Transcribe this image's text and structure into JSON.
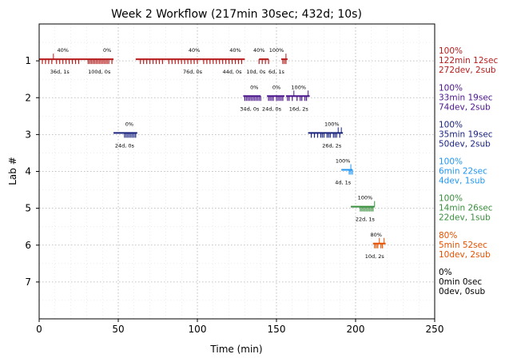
{
  "chart_data": {
    "type": "timeline",
    "title": "Week 2 Workflow (217min 30sec; 432d; 10s)",
    "xlabel": "Time (min)",
    "ylabel": "Lab #",
    "xlim": [
      0,
      250
    ],
    "ylim": [
      8,
      0
    ],
    "x_ticks": [
      "0",
      "50",
      "100",
      "150",
      "200",
      "250"
    ],
    "y_ticks": [
      "1",
      "2",
      "3",
      "4",
      "5",
      "6",
      "7"
    ],
    "grid": true,
    "labs": [
      {
        "lab": 1,
        "color": "#b71c1c",
        "summary": [
          "100%",
          "122min 12sec",
          "272dev, 2sub"
        ],
        "sessions": [
          {
            "start": 0,
            "end": 47,
            "pct": "40%",
            "pct_x": 15,
            "count": "36d, 1s",
            "count_x": 13,
            "submits": [
              9
            ],
            "marks": [
              2,
              4,
              6,
              8,
              11,
              13,
              15,
              17,
              19,
              21,
              23,
              25,
              31,
              32,
              33,
              34,
              35,
              36,
              37,
              38,
              39,
              40,
              41,
              42,
              43,
              44,
              46
            ]
          },
          {
            "start": 0,
            "end": 0,
            "pct": "0%",
            "pct_x": 43,
            "count": "100d, 0s",
            "count_x": 38,
            "submits": [],
            "marks": []
          },
          {
            "start": 61,
            "end": 130,
            "pct": "40%",
            "pct_x": 98,
            "count": "76d, 0s",
            "count_x": 97,
            "submits": [],
            "marks": [
              64,
              66,
              68,
              70,
              72,
              74,
              76,
              78,
              82,
              84,
              86,
              88,
              90,
              92,
              94,
              96,
              98,
              100,
              104,
              106,
              108,
              110,
              112,
              114,
              116,
              118,
              120,
              122,
              124,
              126,
              128
            ]
          },
          {
            "start": 0,
            "end": 0,
            "pct": "40%",
            "pct_x": 124,
            "count": "44d, 0s",
            "count_x": 122,
            "submits": [],
            "marks": []
          },
          {
            "start": 139,
            "end": 145,
            "pct": "40%",
            "pct_x": 139,
            "count": "10d, 0s",
            "count_x": 137,
            "submits": [],
            "marks": [
              139,
              141,
              143,
              145
            ]
          },
          {
            "start": 153,
            "end": 157,
            "pct": "100%",
            "pct_x": 150,
            "count": "6d, 1s",
            "count_x": 150,
            "submits": [
              156
            ],
            "marks": [
              154,
              155,
              156
            ]
          }
        ]
      },
      {
        "lab": 2,
        "color": "#4a148c",
        "summary": [
          "100%",
          "33min 19sec",
          "74dev, 2sub"
        ],
        "sessions": [
          {
            "start": 129,
            "end": 140,
            "pct": "0%",
            "pct_x": 136,
            "count": "34d, 0s",
            "count_x": 133,
            "submits": [],
            "marks": [
              130,
              131,
              132,
              133,
              134,
              135,
              136,
              137,
              138,
              139,
              140
            ]
          },
          {
            "start": 144,
            "end": 155,
            "pct": "0%",
            "pct_x": 150,
            "count": "24d, 0s",
            "count_x": 147,
            "submits": [],
            "marks": [
              145,
              146,
              147,
              148,
              150,
              151,
              152,
              153,
              154
            ]
          },
          {
            "start": 156,
            "end": 171,
            "pct": "100%",
            "pct_x": 164,
            "count": "16d, 2s",
            "count_x": 164,
            "submits": [
              161,
              170
            ],
            "marks": [
              157,
              158,
              160,
              163,
              165,
              166,
              168,
              169
            ]
          }
        ]
      },
      {
        "lab": 3,
        "color": "#1a237e",
        "summary": [
          "100%",
          "35min 19sec",
          "50dev, 2sub"
        ],
        "sessions": [
          {
            "start": 47,
            "end": 62,
            "pct": "0%",
            "pct_x": 57,
            "count": "24d, 0s",
            "count_x": 54,
            "submits": [],
            "marks": [
              54,
              55,
              56,
              57,
              58,
              59,
              60,
              61
            ]
          },
          {
            "start": 170,
            "end": 192,
            "pct": "100%",
            "pct_x": 185,
            "count": "26d, 2s",
            "count_x": 185,
            "submits": [
              189,
              191
            ],
            "marks": [
              172,
              174,
              176,
              178,
              179,
              180,
              182,
              183,
              184,
              186,
              187,
              188,
              190
            ]
          }
        ]
      },
      {
        "lab": 4,
        "color": "#2196f3",
        "summary": [
          "100%",
          "6min 22sec",
          "4dev, 1sub"
        ],
        "sessions": [
          {
            "start": 191,
            "end": 198,
            "pct": "100%",
            "pct_x": 192,
            "count": "4d, 1s",
            "count_x": 192,
            "submits": [
              197
            ],
            "marks": [
              196,
              197,
              198
            ]
          }
        ]
      },
      {
        "lab": 5,
        "color": "#388e3c",
        "summary": [
          "100%",
          "14min 26sec",
          "22dev, 1sub"
        ],
        "sessions": [
          {
            "start": 197,
            "end": 212,
            "pct": "100%",
            "pct_x": 206,
            "count": "22d, 1s",
            "count_x": 206,
            "submits": [
              212
            ],
            "marks": [
              203,
              204,
              205,
              206,
              207,
              208,
              209,
              210,
              211
            ]
          }
        ]
      },
      {
        "lab": 6,
        "color": "#e65100",
        "summary": [
          "80%",
          "5min 52sec",
          "10dev, 2sub"
        ],
        "sessions": [
          {
            "start": 211,
            "end": 219,
            "pct": "80%",
            "pct_x": 213,
            "count": "10d, 2s",
            "count_x": 212,
            "submits": [
              215,
              218
            ],
            "marks": [
              212,
              213,
              214,
              216,
              217
            ]
          }
        ]
      },
      {
        "lab": 7,
        "color": "#000000",
        "summary": [
          "0%",
          "0min 0sec",
          "0dev, 0sub"
        ],
        "sessions": []
      }
    ]
  }
}
